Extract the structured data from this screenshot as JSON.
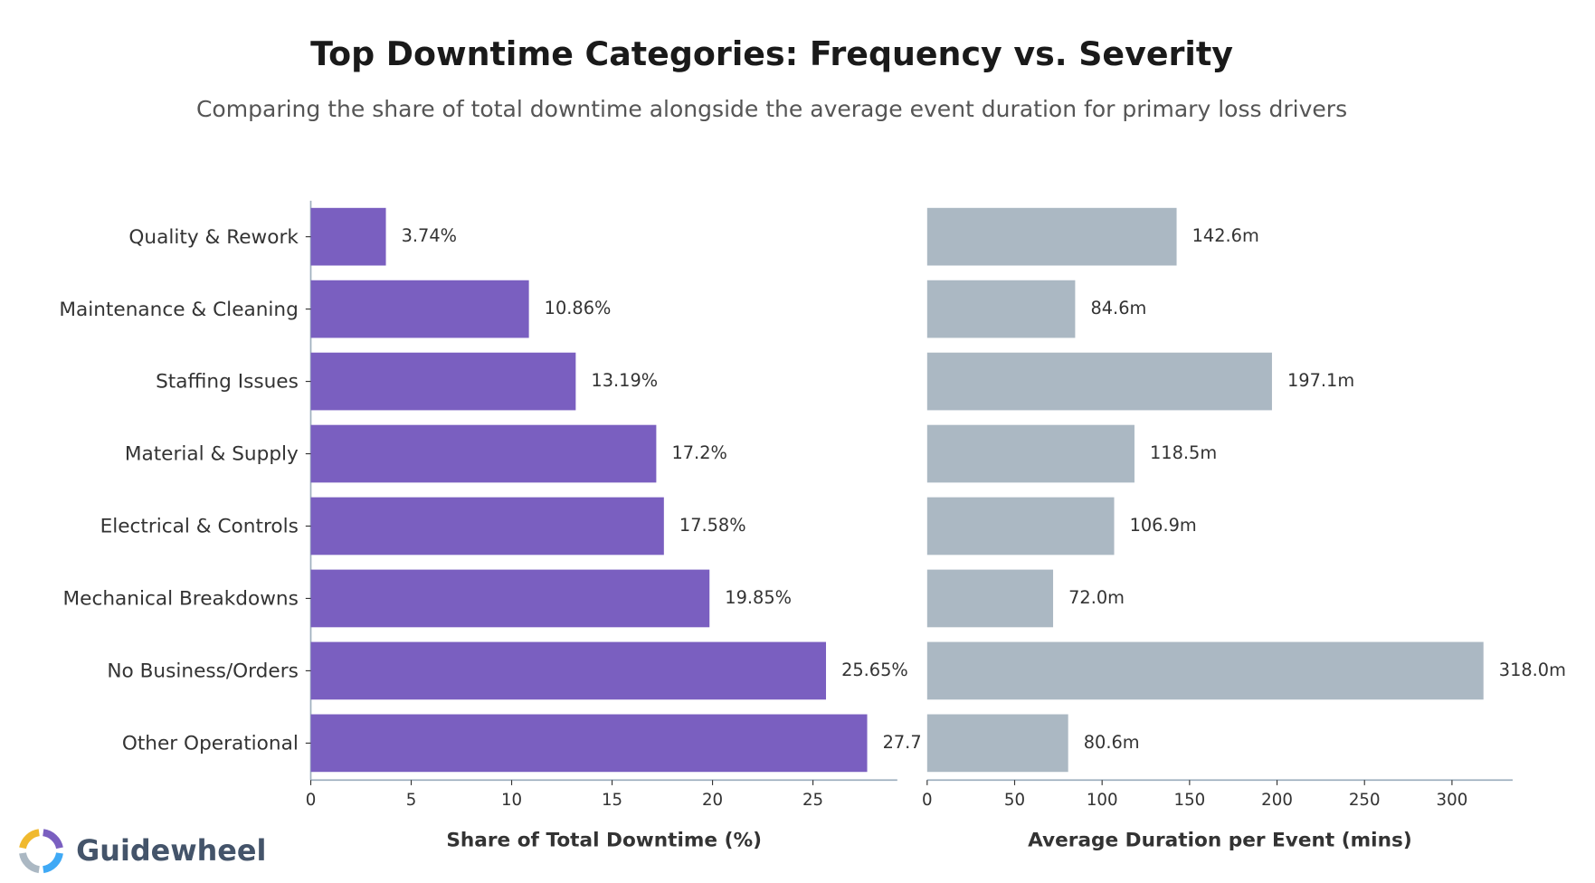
{
  "title": "Top Downtime Categories: Frequency vs. Severity",
  "subtitle": "Comparing the share of total downtime alongside the average event duration for primary loss drivers",
  "logo": "Guidewheel",
  "chart_data": [
    {
      "type": "barh",
      "x_label": "Share of Total Downtime (%)",
      "categories": [
        "Quality & Rework",
        "Maintenance & Cleaning",
        "Staffing Issues",
        "Material & Supply",
        "Electrical & Controls",
        "Mechanical Breakdowns",
        "No Business/Orders",
        "Other Operational"
      ],
      "values": [
        3.74,
        10.86,
        13.19,
        17.2,
        17.58,
        19.85,
        25.65,
        27.7
      ],
      "value_labels": [
        "3.74%",
        "10.86%",
        "13.19%",
        "17.2%",
        "17.58%",
        "19.85%",
        "25.65%",
        "27.7"
      ],
      "color": "#7a5fc0",
      "xlim": [
        0,
        29.2
      ],
      "xticks": [
        0,
        5,
        10,
        15,
        20,
        25
      ]
    },
    {
      "type": "barh",
      "x_label": "Average Duration per Event (mins)",
      "values": [
        142.6,
        84.6,
        197.1,
        118.5,
        106.9,
        72,
        318,
        80.6
      ],
      "value_labels": [
        "142.6m",
        "84.6m",
        "197.1m",
        "118.5m",
        "106.9m",
        "72.0m",
        "318.0m",
        "80.6m"
      ],
      "color": "#abb8c3",
      "xlim": [
        0,
        334.7
      ],
      "xticks": [
        0,
        50,
        100,
        150,
        200,
        250,
        300
      ]
    }
  ]
}
